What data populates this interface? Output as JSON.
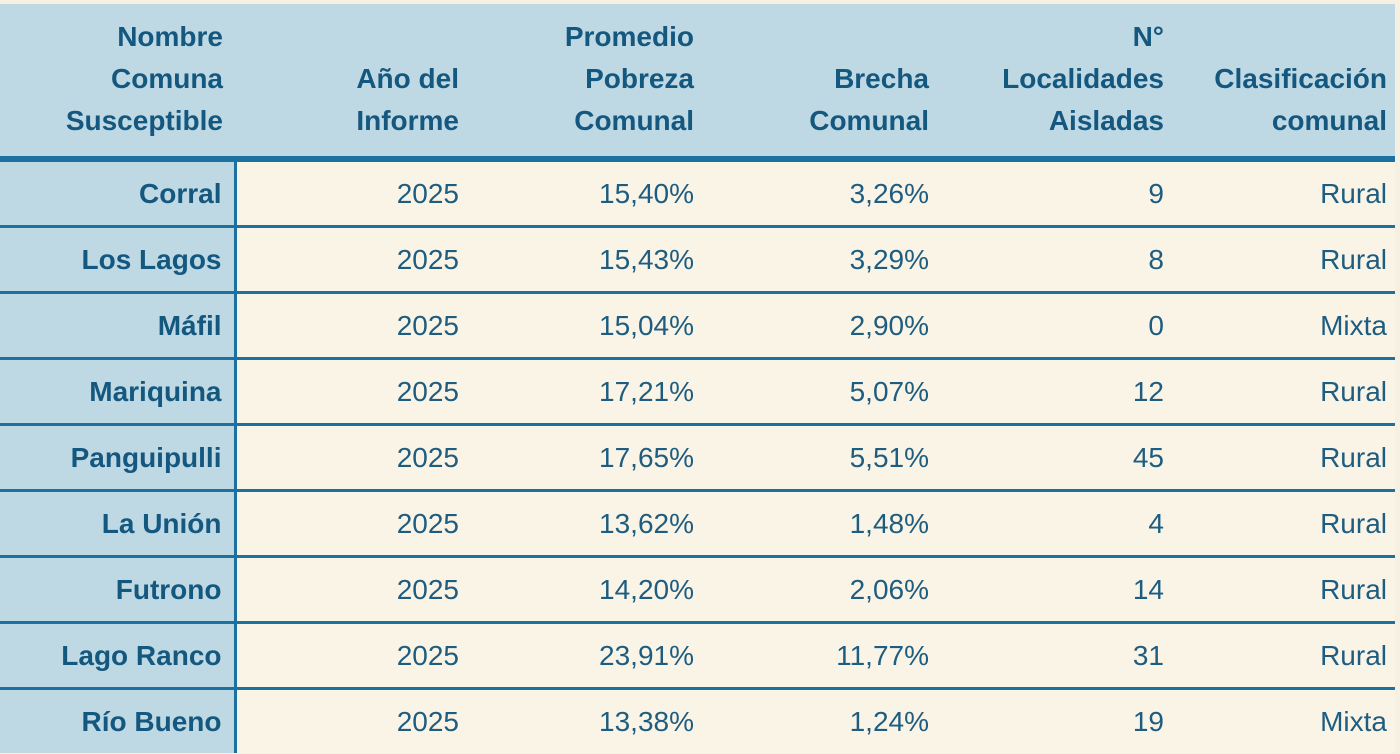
{
  "colors": {
    "header_bg": "#bed9e3",
    "cell_bg": "#faf4e7",
    "border_blue": "#1d71a1",
    "header_text": "#14577f",
    "cell_text": "#1e5d80",
    "page_bg": "#f6f0e3"
  },
  "chart_data": {
    "type": "table",
    "title": "",
    "columns": [
      "Nombre Comuna Susceptible",
      "Año del Informe",
      "Promedio Pobreza Comunal",
      "Brecha Comunal",
      "N° Localidades Aisladas",
      "Clasificación comunal"
    ],
    "rows": [
      [
        "Corral",
        "2025",
        "15,40%",
        "3,26%",
        "9",
        "Rural"
      ],
      [
        "Los Lagos",
        "2025",
        "15,43%",
        "3,29%",
        "8",
        "Rural"
      ],
      [
        "Máfil",
        "2025",
        "15,04%",
        "2,90%",
        "0",
        "Mixta"
      ],
      [
        "Mariquina",
        "2025",
        "17,21%",
        "5,07%",
        "12",
        "Rural"
      ],
      [
        "Panguipulli",
        "2025",
        "17,65%",
        "5,51%",
        "45",
        "Rural"
      ],
      [
        "La Unión",
        "2025",
        "13,62%",
        "1,48%",
        "4",
        "Rural"
      ],
      [
        "Futrono",
        "2025",
        "14,20%",
        "2,06%",
        "14",
        "Rural"
      ],
      [
        "Lago Ranco",
        "2025",
        "23,91%",
        "11,77%",
        "31",
        "Rural"
      ],
      [
        "Río Bueno",
        "2025",
        "13,38%",
        "1,24%",
        "19",
        "Mixta"
      ]
    ]
  },
  "table": {
    "columns": [
      {
        "id": "name",
        "header_lines": [
          "Nombre",
          "Comuna",
          "Susceptible"
        ]
      },
      {
        "id": "year",
        "header_lines": [
          "Año del",
          "Informe"
        ]
      },
      {
        "id": "poverty",
        "header_lines": [
          "Promedio",
          "Pobreza",
          "Comunal"
        ]
      },
      {
        "id": "gap",
        "header_lines": [
          "Brecha",
          "Comunal"
        ]
      },
      {
        "id": "localities",
        "header_lines": [
          "N°",
          "Localidades",
          "Aisladas"
        ]
      },
      {
        "id": "classification",
        "header_lines": [
          "Clasificación",
          "comunal"
        ]
      }
    ],
    "rows": [
      {
        "name": "Corral",
        "year": "2025",
        "poverty": "15,40%",
        "gap": "3,26%",
        "localities": "9",
        "classification": "Rural"
      },
      {
        "name": "Los Lagos",
        "year": "2025",
        "poverty": "15,43%",
        "gap": "3,29%",
        "localities": "8",
        "classification": "Rural"
      },
      {
        "name": "Máfil",
        "year": "2025",
        "poverty": "15,04%",
        "gap": "2,90%",
        "localities": "0",
        "classification": "Mixta"
      },
      {
        "name": "Mariquina",
        "year": "2025",
        "poverty": "17,21%",
        "gap": "5,07%",
        "localities": "12",
        "classification": "Rural"
      },
      {
        "name": "Panguipulli",
        "year": "2025",
        "poverty": "17,65%",
        "gap": "5,51%",
        "localities": "45",
        "classification": "Rural"
      },
      {
        "name": "La Unión",
        "year": "2025",
        "poverty": "13,62%",
        "gap": "1,48%",
        "localities": "4",
        "classification": "Rural"
      },
      {
        "name": "Futrono",
        "year": "2025",
        "poverty": "14,20%",
        "gap": "2,06%",
        "localities": "14",
        "classification": "Rural"
      },
      {
        "name": "Lago Ranco",
        "year": "2025",
        "poverty": "23,91%",
        "gap": "11,77%",
        "localities": "31",
        "classification": "Rural"
      },
      {
        "name": "Río Bueno",
        "year": "2025",
        "poverty": "13,38%",
        "gap": "1,24%",
        "localities": "19",
        "classification": "Mixta"
      }
    ]
  }
}
